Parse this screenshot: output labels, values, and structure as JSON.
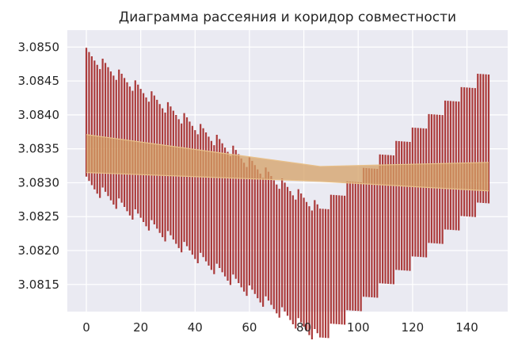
{
  "chart_data": {
    "type": "error-bar",
    "title": "Диаграмма рассеяния и коридор совместности",
    "xlabel": "",
    "ylabel": "",
    "xlim": [
      -7,
      155
    ],
    "ylim": [
      3.0811,
      3.08525
    ],
    "x_ticks": [
      0,
      20,
      40,
      60,
      80,
      100,
      120,
      140
    ],
    "y_ticks": [
      3.0815,
      3.082,
      3.0825,
      3.083,
      3.0835,
      3.084,
      3.0845,
      3.085
    ],
    "x_tick_labels": [
      "0",
      "20",
      "40",
      "60",
      "80",
      "100",
      "120",
      "140"
    ],
    "y_tick_labels": [
      "3.0815",
      "3.0820",
      "3.0825",
      "3.0830",
      "3.0835",
      "3.0840",
      "3.0845",
      "3.0850"
    ],
    "grid": true,
    "colors": {
      "background": "#eaeaf2",
      "grid": "#ffffff",
      "intervals": "#a52a2a",
      "corridor": "#d4a066"
    },
    "intervals": {
      "x_start": 0,
      "x_step": 1,
      "count": 149,
      "center_start": 3.08395,
      "center_min": 3.08165,
      "center_min_x": 86,
      "center_end": 3.0837,
      "half_width": 0.00095,
      "sawtooth_amplitude": 9e-05,
      "sawtooth_period": 6
    },
    "corridor": {
      "x": [
        0,
        86,
        148
      ],
      "lower": [
        3.08315,
        3.08302,
        3.08288
      ],
      "upper": [
        3.08371,
        3.08324,
        3.0833
      ]
    }
  }
}
